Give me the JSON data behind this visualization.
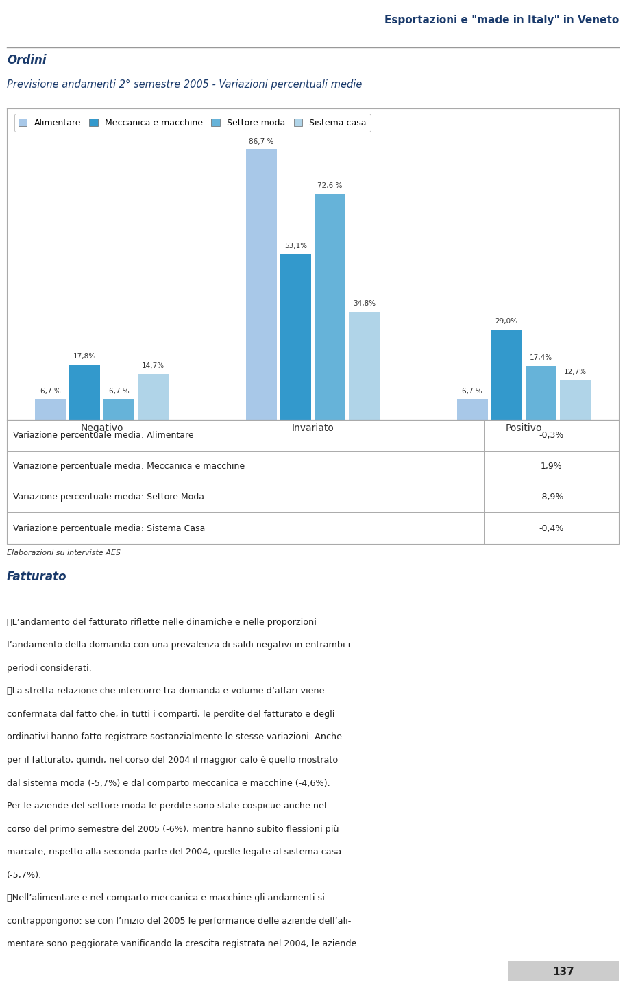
{
  "header_text": "Esportazioni e \"made in Italy\" in Veneto",
  "title_bold": "Ordini",
  "title_italic": "Previsione andamenti 2° semestre 2005 - Variazioni percentuali medie",
  "legend_labels": [
    "Alimentare",
    "Meccanica e macchine",
    "Settore moda",
    "Sistema casa"
  ],
  "bar_colors": [
    "#a8c8e8",
    "#3399cc",
    "#66b3d9",
    "#b0d4e8"
  ],
  "groups": [
    "Negativo",
    "Invariato",
    "Positivo"
  ],
  "values": [
    [
      6.7,
      17.8,
      6.7,
      14.7
    ],
    [
      86.7,
      53.1,
      72.6,
      34.8
    ],
    [
      6.7,
      29.0,
      17.4,
      12.7
    ]
  ],
  "bar_labels": [
    [
      "6,7 %",
      "17,8%",
      "6,7 %",
      "14,7%"
    ],
    [
      "86,7 %",
      "53,1%",
      "72,6 %",
      "34,8%"
    ],
    [
      "6,7 %",
      "29,0%",
      "17,4%",
      "12,7%"
    ]
  ],
  "table_rows": [
    [
      "Variazione percentuale media: Alimentare",
      "-0,3%"
    ],
    [
      "Variazione percentuale media: Meccanica e macchine",
      "1,9%"
    ],
    [
      "Variazione percentuale media: Settore Moda",
      "-8,9%"
    ],
    [
      "Variazione percentuale media: Sistema Casa",
      "-0,4%"
    ]
  ],
  "table_note": "Elaborazioni su interviste AES",
  "fatturato_title": "Fatturato",
  "page_number": "137",
  "background_color": "#ffffff",
  "chart_border_color": "#aaaaaa",
  "header_color": "#1a3a6b",
  "title_color": "#1a3a6b"
}
